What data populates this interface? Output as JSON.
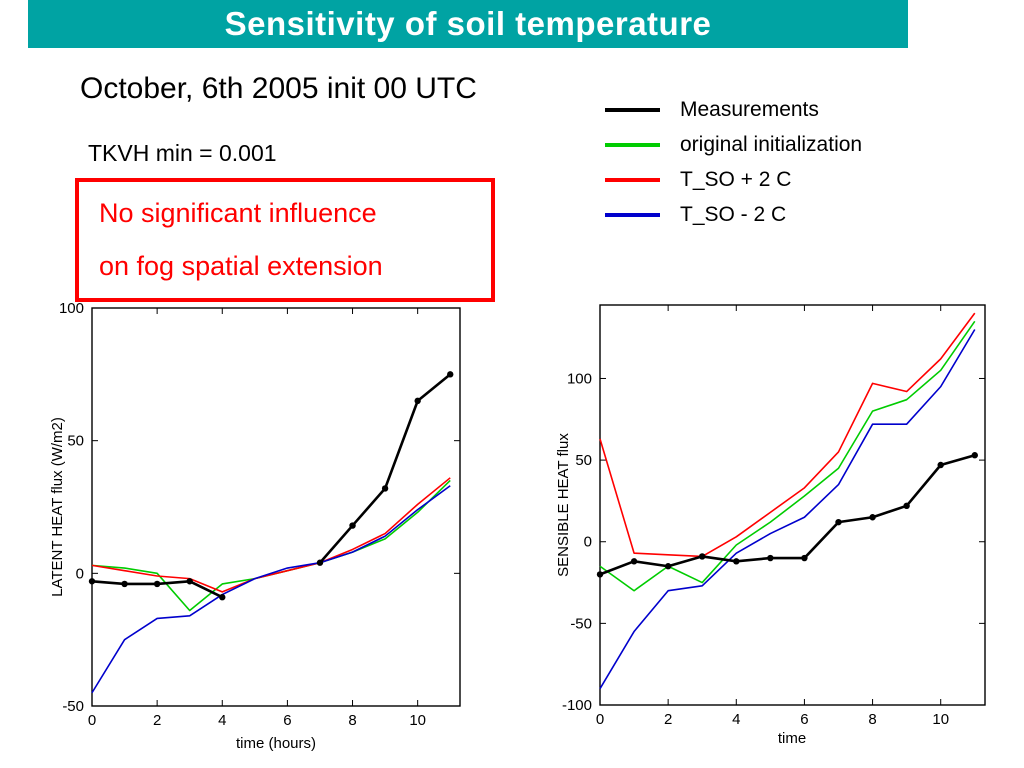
{
  "slide": {
    "title": "Sensitivity of soil temperature",
    "subtitle": "October, 6th 2005 init 00 UTC",
    "param_text": "TKVH min = 0.001",
    "note_line1": "No significant influence",
    "note_line2": "on fog spatial extension"
  },
  "colors": {
    "header_bg": "#00A3A3",
    "header_text": "#FFFFFF",
    "note_red": "#FF0000",
    "measurements": "#000000",
    "original_initialization": "#00CC00",
    "tso_plus_2c": "#FF0000",
    "tso_minus_2c": "#0000CC"
  },
  "legend": {
    "items": [
      {
        "label": "Measurements",
        "color": "#000000"
      },
      {
        "label": "original initialization",
        "color": "#00CC00"
      },
      {
        "label": "T_SO + 2 C",
        "color": "#FF0000"
      },
      {
        "label": "T_SO - 2 C",
        "color": "#0000CC"
      }
    ]
  },
  "chart_data": [
    {
      "type": "line",
      "title": "",
      "xlabel": "time (hours)",
      "ylabel": "LATENT HEAT flux (W/m2)",
      "xlim": [
        0,
        11.3
      ],
      "ylim": [
        -50,
        100
      ],
      "xticks": [
        0,
        2,
        4,
        6,
        8,
        10
      ],
      "yticks": [
        -50,
        0,
        50,
        100
      ],
      "grid": false,
      "legend_position": "shared external top-right",
      "x": [
        0,
        1,
        2,
        3,
        4,
        5,
        6,
        7,
        8,
        9,
        10,
        11
      ],
      "series": [
        {
          "name": "original initialization",
          "color": "#00CC00",
          "width": 1.6,
          "marker": false,
          "values": [
            3,
            2,
            0,
            -14,
            -4,
            -2,
            1,
            4,
            8,
            13,
            23,
            35
          ]
        },
        {
          "name": "T_SO + 2 C",
          "color": "#FF0000",
          "width": 1.6,
          "marker": false,
          "values": [
            3,
            1,
            -1,
            -2,
            -7,
            -2,
            1,
            4,
            9,
            15,
            26,
            36
          ]
        },
        {
          "name": "T_SO - 2 C",
          "color": "#0000CC",
          "width": 1.6,
          "marker": false,
          "values": [
            -45,
            -25,
            -17,
            -16,
            -8,
            -2,
            2,
            4,
            8,
            14,
            24,
            33
          ]
        },
        {
          "name": "Measurements",
          "color": "#000000",
          "width": 2.6,
          "marker": true,
          "values": [
            -3,
            -4,
            -4,
            -3,
            -9,
            null,
            null,
            4,
            18,
            32,
            65,
            75
          ]
        }
      ]
    },
    {
      "type": "line",
      "title": "",
      "xlabel": "time",
      "ylabel": "SENSIBLE HEAT flux",
      "xlim": [
        0,
        11.3
      ],
      "ylim": [
        -100,
        145
      ],
      "xticks": [
        0,
        2,
        4,
        6,
        8,
        10
      ],
      "yticks": [
        -100,
        -50,
        0,
        50,
        100
      ],
      "grid": false,
      "legend_position": "shared external top-right",
      "x": [
        0,
        1,
        2,
        3,
        4,
        5,
        6,
        7,
        8,
        9,
        10,
        11
      ],
      "series": [
        {
          "name": "original initialization",
          "color": "#00CC00",
          "width": 1.6,
          "marker": false,
          "values": [
            -15,
            -30,
            -15,
            -25,
            -2,
            12,
            28,
            45,
            80,
            87,
            105,
            135
          ]
        },
        {
          "name": "T_SO + 2 C",
          "color": "#FF0000",
          "width": 1.6,
          "marker": false,
          "values": [
            63,
            -7,
            -8,
            -9,
            3,
            18,
            33,
            55,
            97,
            92,
            112,
            140
          ]
        },
        {
          "name": "T_SO - 2 C",
          "color": "#0000CC",
          "width": 1.6,
          "marker": false,
          "values": [
            -90,
            -55,
            -30,
            -27,
            -7,
            5,
            15,
            35,
            72,
            72,
            95,
            130
          ]
        },
        {
          "name": "Measurements",
          "color": "#000000",
          "width": 2.6,
          "marker": true,
          "values": [
            -20,
            -12,
            -15,
            -9,
            -12,
            -10,
            -10,
            12,
            15,
            22,
            47,
            53
          ]
        }
      ]
    }
  ]
}
